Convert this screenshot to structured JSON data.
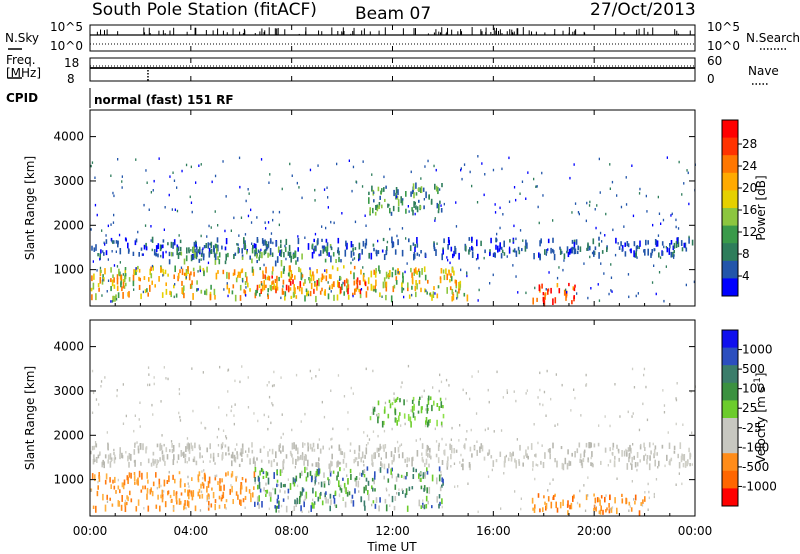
{
  "header": {
    "station": "South Pole Station (fitACF)",
    "beam": "Beam 07",
    "date": "27/Oct/2013"
  },
  "status_panels": {
    "nsky_label": "N.Sky",
    "nsearch_label": "N.Search",
    "freq_label_1": "Freq.",
    "freq_label_2": "[MHz]",
    "nave_label": "Nave",
    "cpid_label": "CPID",
    "cpid_text": "normal (fast) 151 RF",
    "nsky_ticks": [
      "10^5",
      "10^0"
    ],
    "nsearch_ticks": [
      "10^5",
      "10^0"
    ],
    "freq_ticks": [
      "18",
      "8"
    ],
    "nave_ticks": [
      "60",
      "0"
    ]
  },
  "chart_data": [
    {
      "type": "heatmap",
      "name": "power",
      "ylabel": "Slant Range [km]",
      "xlabel": "",
      "colorbar_label": "Power [dB]",
      "xlim_hours": [
        0,
        24
      ],
      "ylim": [
        180,
        4600
      ],
      "y_ticks": [
        1000,
        2000,
        3000,
        4000
      ],
      "colorbar_ticks": [
        "28",
        "24",
        "20",
        "16",
        "12",
        "8",
        "4"
      ],
      "colorbar_colors": [
        "#ff0000",
        "#ff3300",
        "#ff7700",
        "#ffaa00",
        "#e6d000",
        "#8cc63f",
        "#3a9a4a",
        "#2e7d5b",
        "#2255aa",
        "#0000ff"
      ],
      "bands": [
        {
          "range_km": [
            1350,
            1750
          ],
          "hours": [
            0,
            24
          ],
          "level": "low"
        },
        {
          "range_km": [
            1200,
            1600
          ],
          "hours": [
            3,
            10
          ],
          "level": "mid"
        },
        {
          "range_km": [
            400,
            1100
          ],
          "hours": [
            0,
            15
          ],
          "level": "mid-high"
        },
        {
          "range_km": [
            550,
            900
          ],
          "hours": [
            6.5,
            11
          ],
          "level": "high"
        },
        {
          "range_km": [
            2300,
            3000
          ],
          "hours": [
            11,
            14
          ],
          "level": "mid"
        },
        {
          "range_km": [
            300,
            700
          ],
          "hours": [
            17.5,
            19.5
          ],
          "level": "high"
        }
      ]
    },
    {
      "type": "heatmap",
      "name": "velocity",
      "ylabel": "Slant Range [km]",
      "xlabel": "Time UT",
      "colorbar_label": "Velocity [m s-1]",
      "xlim_hours": [
        0,
        24
      ],
      "ylim": [
        180,
        4600
      ],
      "y_ticks": [
        1000,
        2000,
        3000,
        4000
      ],
      "x_ticks": [
        "00:00",
        "04:00",
        "08:00",
        "12:00",
        "16:00",
        "20:00",
        "00:00"
      ],
      "colorbar_ticks": [
        "1000",
        "500",
        "100",
        "25",
        "-25",
        "-100",
        "-500",
        "-1000"
      ],
      "colorbar_colors": [
        "#1010ee",
        "#2c4fbf",
        "#3b7d6b",
        "#3b9140",
        "#6ccc2c",
        "#c7c7c0",
        "#c7c7c0",
        "#ff8c19",
        "#ff6600",
        "#ff0000"
      ],
      "bands": [
        {
          "range_km": [
            1350,
            1850
          ],
          "hours": [
            0,
            24
          ],
          "level": "ground"
        },
        {
          "range_km": [
            400,
            1200
          ],
          "hours": [
            0,
            6.5
          ],
          "level": "neg-100"
        },
        {
          "range_km": [
            400,
            1300
          ],
          "hours": [
            6.5,
            14
          ],
          "level": "pos-100"
        },
        {
          "range_km": [
            2300,
            2900
          ],
          "hours": [
            11,
            14
          ],
          "level": "pos-green"
        },
        {
          "range_km": [
            300,
            700
          ],
          "hours": [
            17.5,
            22
          ],
          "level": "neg-500"
        }
      ]
    }
  ]
}
